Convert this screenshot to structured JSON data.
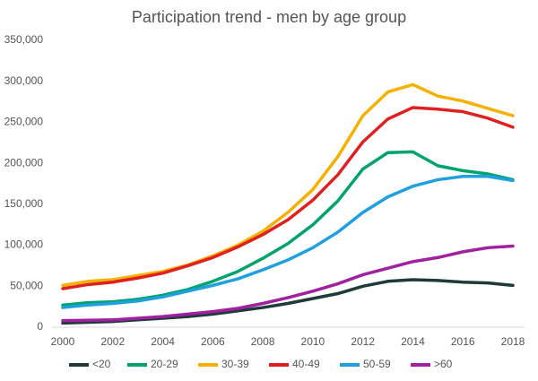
{
  "chart_data": {
    "type": "line",
    "title": "Participation trend - men by age group",
    "x": [
      2000,
      2001,
      2002,
      2003,
      2004,
      2005,
      2006,
      2007,
      2008,
      2009,
      2010,
      2011,
      2012,
      2013,
      2014,
      2015,
      2016,
      2017,
      2018
    ],
    "xlim": [
      2000,
      2018
    ],
    "xticks": [
      2000,
      2002,
      2004,
      2006,
      2008,
      2010,
      2012,
      2014,
      2016,
      2018
    ],
    "ylim": [
      0,
      350000
    ],
    "yticks": [
      0,
      {
        "value": 50000,
        "label": "50,000"
      },
      {
        "value": 100000,
        "label": "100,000"
      },
      {
        "value": 150000,
        "label": "150,000"
      },
      {
        "value": 200000,
        "label": "200,000"
      },
      {
        "value": 250000,
        "label": "250,000"
      },
      {
        "value": 300000,
        "label": "300,000"
      },
      {
        "value": 350000,
        "label": "350,000"
      }
    ],
    "legend": "bottom",
    "series": [
      {
        "name": "<20",
        "color": "#1e3a3a",
        "values": [
          5000,
          6000,
          7000,
          9000,
          11000,
          13000,
          16000,
          20000,
          24000,
          29000,
          35000,
          41000,
          50000,
          56000,
          58000,
          57000,
          55000,
          54000,
          51000
        ]
      },
      {
        "name": "20-29",
        "color": "#00a36c",
        "values": [
          27000,
          30000,
          31000,
          34000,
          39000,
          46000,
          56000,
          68000,
          84000,
          102000,
          125000,
          154000,
          193000,
          213000,
          214000,
          197000,
          191000,
          187000,
          180000
        ]
      },
      {
        "name": "30-39",
        "color": "#f5b000",
        "values": [
          51000,
          56000,
          58000,
          63000,
          68000,
          76000,
          87000,
          100000,
          117000,
          140000,
          168000,
          208000,
          258000,
          287000,
          296000,
          282000,
          276000,
          267000,
          258000
        ]
      },
      {
        "name": "40-49",
        "color": "#e02020",
        "values": [
          47000,
          52000,
          55000,
          60000,
          66000,
          75000,
          85000,
          98000,
          113000,
          131000,
          155000,
          186000,
          226000,
          254000,
          268000,
          266000,
          263000,
          255000,
          244000
        ]
      },
      {
        "name": "50-59",
        "color": "#1fa0e0",
        "values": [
          24000,
          27000,
          29000,
          32000,
          37000,
          44000,
          51000,
          59000,
          70000,
          82000,
          97000,
          116000,
          140000,
          159000,
          172000,
          180000,
          184000,
          184000,
          179000
        ]
      },
      {
        "name": ">60",
        "color": "#a020a0",
        "values": [
          8000,
          8500,
          9000,
          11000,
          13000,
          16000,
          19000,
          23000,
          29000,
          36000,
          44000,
          53000,
          64000,
          72000,
          80000,
          85000,
          92000,
          97000,
          99000
        ]
      }
    ]
  }
}
